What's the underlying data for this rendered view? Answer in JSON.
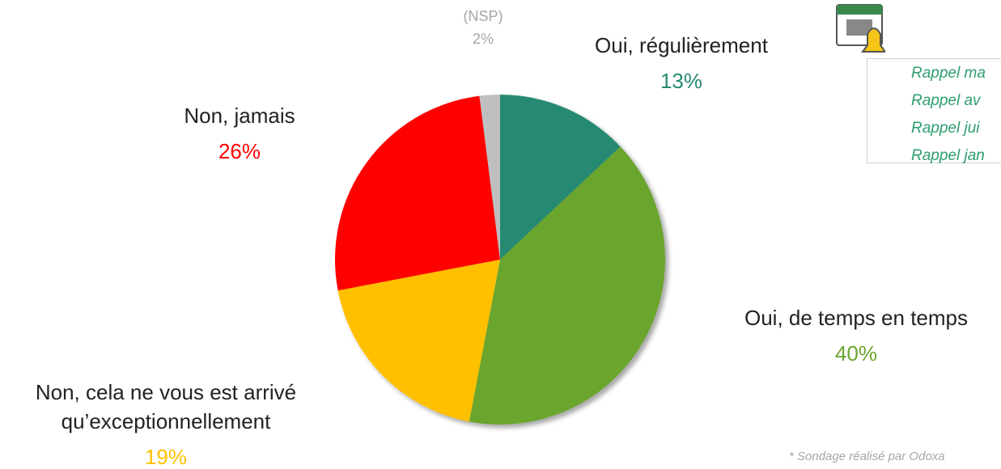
{
  "chart_data": {
    "type": "pie",
    "categories": [
      "Oui, régulièrement",
      "Oui, de temps en temps",
      "Non, cela ne vous est arrivé qu’exceptionnellement",
      "Non, jamais",
      "(NSP)"
    ],
    "values": [
      13,
      40,
      19,
      26,
      2
    ],
    "value_labels": [
      "13%",
      "40%",
      "19%",
      "26%",
      "2%"
    ],
    "colors": [
      "#268a72",
      "#6aa52f",
      "#ffc000",
      "#ff0000",
      "#bfbfbf"
    ],
    "annotations": [
      "Rappel ma",
      "Rappel av",
      "Rappel jui",
      "Rappel jan"
    ],
    "footnote": "* Sondage réalisé par Odoxa"
  }
}
